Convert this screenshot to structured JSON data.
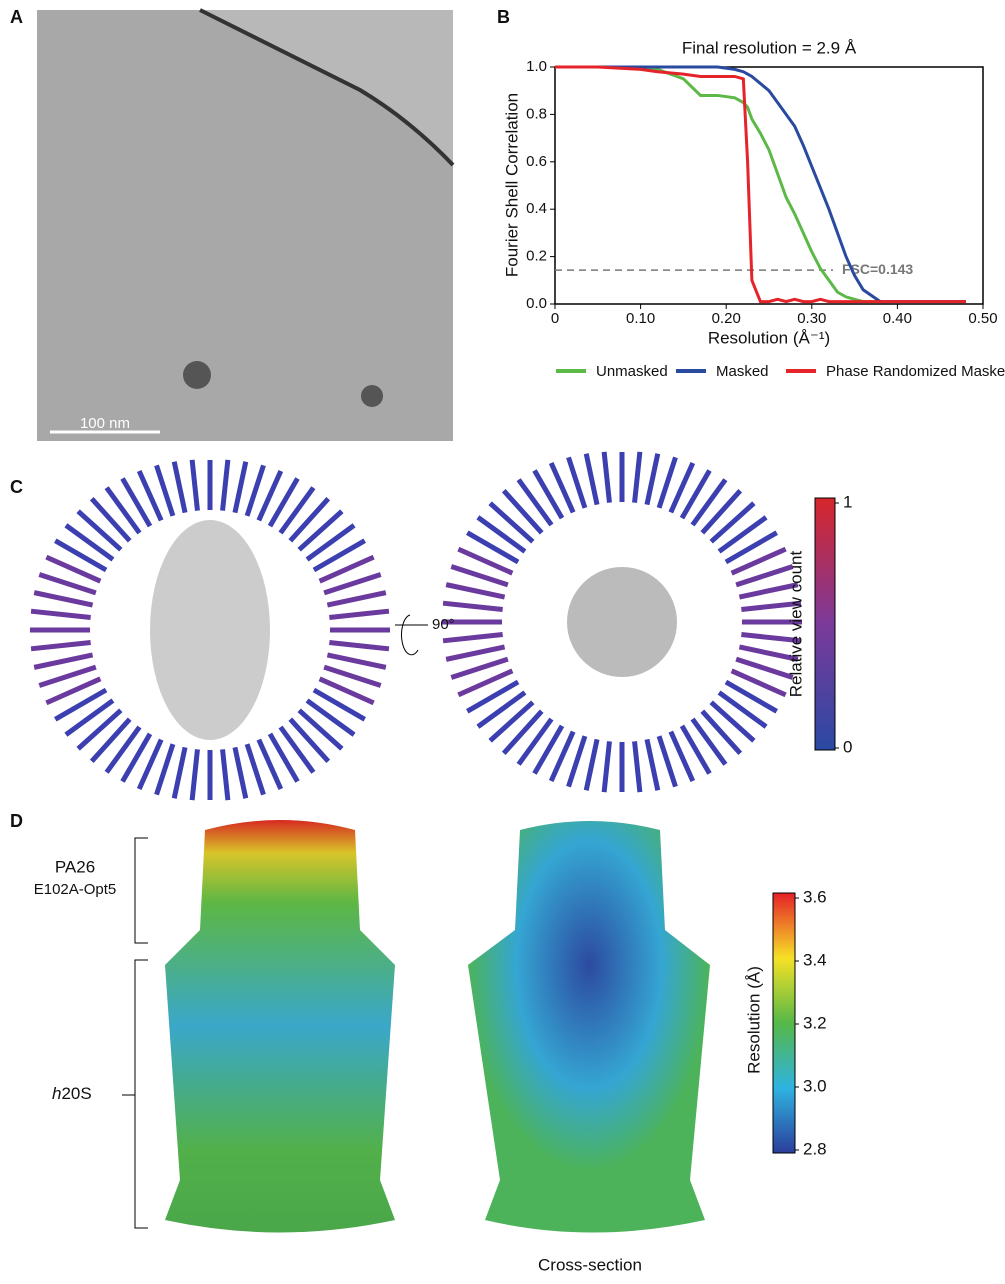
{
  "panels": {
    "A": {
      "letter": "A",
      "scalebar": "100 nm"
    },
    "B": {
      "letter": "B"
    },
    "C": {
      "letter": "C",
      "rotation": "90°",
      "colorbar": {
        "label": "Relative view count",
        "ticks": [
          1,
          0
        ]
      }
    },
    "D": {
      "letter": "D",
      "bracket_top": [
        "PA26",
        "E102A-Opt5"
      ],
      "bracket_bottom": {
        "italic": "h",
        "rest": "20S"
      },
      "caption": "Cross-section",
      "colorbar": {
        "label": "Resolution (Å)",
        "ticks": [
          3.6,
          3.4,
          3.2,
          {
            "value": 3.0,
            "label": "3.0"
          },
          2.8
        ]
      }
    }
  },
  "chart_data": {
    "type": "line",
    "title": "Final resolution = 2.9 Å",
    "x_label": "Resolution (Å⁻¹)",
    "y_label": "Fourier Shell Correlation",
    "x": [
      0,
      0.05,
      0.1,
      0.12,
      0.15,
      0.17,
      0.19,
      0.21,
      0.22,
      0.225,
      0.23,
      0.24,
      0.25,
      0.26,
      0.27,
      0.28,
      0.29,
      0.3,
      0.31,
      0.32,
      0.33,
      0.34,
      0.35,
      0.36,
      0.38,
      0.4,
      0.45,
      0.48
    ],
    "series": [
      {
        "name": "Unmasked",
        "color": "#5cb947",
        "values": [
          1.0,
          1.0,
          1.0,
          0.99,
          0.95,
          0.88,
          0.88,
          0.87,
          0.85,
          0.83,
          0.78,
          0.72,
          0.65,
          0.55,
          0.45,
          0.38,
          0.3,
          0.22,
          0.15,
          0.1,
          0.05,
          0.03,
          0.02,
          0.01,
          0.01,
          0.01,
          0.01,
          0.01
        ]
      },
      {
        "name": "Masked",
        "color": "#2a4aa0",
        "values": [
          1.0,
          1.0,
          1.0,
          1.0,
          1.0,
          1.0,
          1.0,
          0.99,
          0.98,
          0.97,
          0.96,
          0.93,
          0.9,
          0.85,
          0.8,
          0.75,
          0.67,
          0.58,
          0.49,
          0.4,
          0.3,
          0.2,
          0.12,
          0.06,
          0.01,
          0.01,
          0.01,
          0.01
        ]
      },
      {
        "name": "Phase Randomized Masked",
        "color": "#e5232a",
        "values": [
          1.0,
          1.0,
          0.99,
          0.98,
          0.97,
          0.96,
          0.96,
          0.96,
          0.95,
          0.6,
          0.1,
          0.01,
          0.01,
          0.02,
          0.01,
          0.02,
          0.01,
          0.01,
          0.02,
          0.01,
          0.01,
          0.01,
          0.01,
          0.01,
          0.01,
          0.01,
          0.01,
          0.01
        ]
      }
    ],
    "threshold": {
      "value": 0.143,
      "label": "FSC=0.143"
    },
    "xlim": [
      0,
      0.5
    ],
    "ylim": [
      0,
      1.0
    ],
    "xticks": [
      0,
      {
        "value": 0.1,
        "label": "0.10"
      },
      {
        "value": 0.2,
        "label": "0.20"
      },
      {
        "value": 0.3,
        "label": "0.30"
      },
      {
        "value": 0.4,
        "label": "0.40"
      },
      {
        "value": 0.5,
        "label": "0.50"
      }
    ],
    "yticks": [
      {
        "value": 0,
        "label": "0.0"
      },
      0.2,
      0.4,
      0.6,
      0.8,
      {
        "value": 1.0,
        "label": "1.0"
      }
    ]
  }
}
